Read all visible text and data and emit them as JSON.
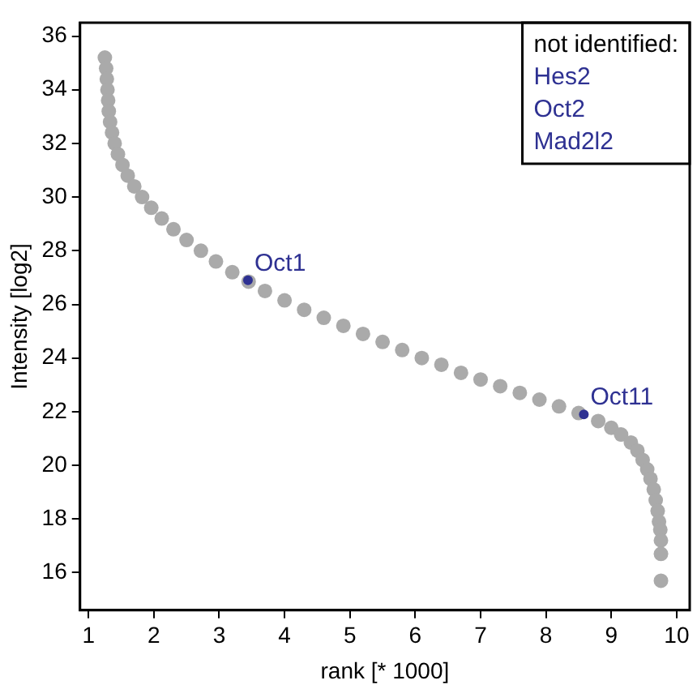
{
  "chart_data": {
    "type": "scatter",
    "xlabel": "rank [* 1000]",
    "ylabel": "Intensity [log2]",
    "xlim": [
      0.87,
      10.2
    ],
    "ylim": [
      14.6,
      36.5
    ],
    "xticks": [
      1,
      2,
      3,
      4,
      5,
      6,
      7,
      8,
      9,
      10
    ],
    "yticks": [
      16,
      18,
      20,
      22,
      24,
      26,
      28,
      30,
      32,
      34,
      36
    ],
    "grid": false,
    "legend": false,
    "marker": "circle",
    "series": [
      {
        "color": "#aaaaaa",
        "x": [
          1.25,
          1.27,
          1.28,
          1.29,
          1.3,
          1.31,
          1.33,
          1.36,
          1.4,
          1.45,
          1.52,
          1.6,
          1.7,
          1.82,
          1.96,
          2.12,
          2.3,
          2.5,
          2.72,
          2.95,
          3.2,
          3.45,
          3.7,
          4.0,
          4.3,
          4.6,
          4.9,
          5.2,
          5.5,
          5.8,
          6.1,
          6.4,
          6.7,
          7.0,
          7.3,
          7.6,
          7.9,
          8.2,
          8.5,
          8.8,
          9.0,
          9.15,
          9.3,
          9.4,
          9.48,
          9.55,
          9.6,
          9.65,
          9.68,
          9.71,
          9.73,
          9.75,
          9.76,
          9.76,
          9.76
        ],
        "values": [
          35.2,
          34.8,
          34.4,
          34.0,
          33.6,
          33.2,
          32.8,
          32.4,
          32.0,
          31.6,
          31.2,
          30.8,
          30.4,
          30.0,
          29.6,
          29.2,
          28.8,
          28.4,
          28.0,
          27.6,
          27.2,
          26.85,
          26.5,
          26.15,
          25.8,
          25.5,
          25.2,
          24.9,
          24.6,
          24.3,
          24.0,
          23.75,
          23.45,
          23.2,
          22.95,
          22.7,
          22.45,
          22.2,
          21.95,
          21.65,
          21.4,
          21.15,
          20.85,
          20.55,
          20.2,
          19.85,
          19.5,
          19.1,
          18.7,
          18.3,
          17.9,
          17.6,
          17.2,
          16.7,
          15.7
        ]
      },
      {
        "color": "#2e3192",
        "x": [
          3.44,
          8.58
        ],
        "values": [
          26.9,
          21.9
        ]
      }
    ],
    "annotations": [
      {
        "text": "Oct1",
        "x": 3.44,
        "y": 26.9
      },
      {
        "text": "Oct11",
        "x": 8.58,
        "y": 21.9
      },
      "not identified:",
      "Hes2",
      "Oct2",
      "Mad2l2"
    ]
  }
}
